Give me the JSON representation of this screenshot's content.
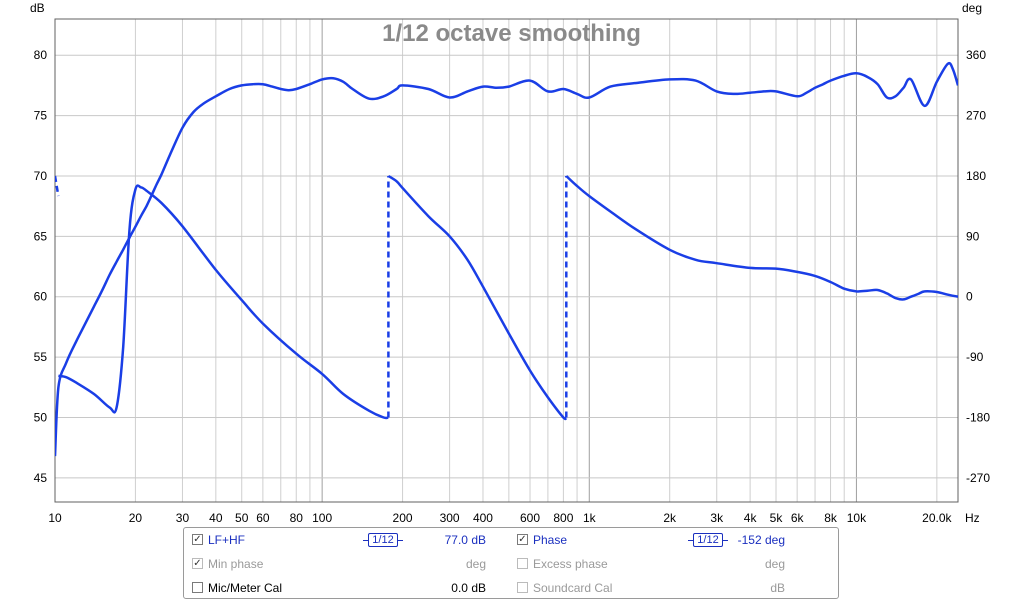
{
  "chart_data": {
    "type": "line",
    "title": "1/12 octave smoothing",
    "xlabel": "Hz",
    "ylabel_left": "dB",
    "ylabel_right": "deg",
    "x_scale": "log",
    "xlim": [
      10,
      24000
    ],
    "ylim_left": [
      43,
      83
    ],
    "ylim_right": [
      -306,
      414
    ],
    "grid": true,
    "x_ticks": [
      {
        "v": 10,
        "label": "10"
      },
      {
        "v": 20,
        "label": "20"
      },
      {
        "v": 30,
        "label": "30"
      },
      {
        "v": 40,
        "label": "40"
      },
      {
        "v": 50,
        "label": "50"
      },
      {
        "v": 60,
        "label": "60"
      },
      {
        "v": 80,
        "label": "80"
      },
      {
        "v": 100,
        "label": "100"
      },
      {
        "v": 200,
        "label": "200"
      },
      {
        "v": 300,
        "label": "300"
      },
      {
        "v": 400,
        "label": "400"
      },
      {
        "v": 600,
        "label": "600"
      },
      {
        "v": 800,
        "label": "800"
      },
      {
        "v": 1000,
        "label": "1k"
      },
      {
        "v": 2000,
        "label": "2k"
      },
      {
        "v": 3000,
        "label": "3k"
      },
      {
        "v": 4000,
        "label": "4k"
      },
      {
        "v": 5000,
        "label": "5k"
      },
      {
        "v": 6000,
        "label": "6k"
      },
      {
        "v": 8000,
        "label": "8k"
      },
      {
        "v": 10000,
        "label": "10k"
      },
      {
        "v": 20000,
        "label": "20.0k"
      }
    ],
    "y_left_ticks": [
      {
        "v": 45,
        "label": "45"
      },
      {
        "v": 50,
        "label": "50"
      },
      {
        "v": 55,
        "label": "55"
      },
      {
        "v": 60,
        "label": "60"
      },
      {
        "v": 65,
        "label": "65"
      },
      {
        "v": 70,
        "label": "70"
      },
      {
        "v": 75,
        "label": "75"
      },
      {
        "v": 80,
        "label": "80"
      }
    ],
    "y_right_ticks": [
      {
        "v": -270,
        "label": "-270"
      },
      {
        "v": -180,
        "label": "-180"
      },
      {
        "v": -90,
        "label": "-90"
      },
      {
        "v": 0,
        "label": "0"
      },
      {
        "v": 90,
        "label": "90"
      },
      {
        "v": 180,
        "label": "180"
      },
      {
        "v": 270,
        "label": "270"
      },
      {
        "v": 360,
        "label": "360"
      }
    ],
    "series": [
      {
        "name": "LF+HF",
        "axis": "left",
        "color": "#1a3ee6",
        "x": [
          10,
          10.3,
          11,
          12,
          13,
          14,
          15,
          16,
          17,
          18,
          19,
          20,
          21,
          22,
          23,
          24,
          25,
          27,
          30,
          33,
          36,
          40,
          45,
          50,
          55,
          60,
          65,
          70,
          75,
          80,
          90,
          100,
          110,
          120,
          130,
          150,
          170,
          190,
          200,
          250,
          300,
          350,
          400,
          450,
          500,
          600,
          700,
          800,
          900,
          1000,
          1200,
          1500,
          2000,
          2500,
          3000,
          3500,
          4000,
          4500,
          5000,
          6000,
          6500,
          7000,
          7500,
          8000,
          9000,
          10000,
          11000,
          12000,
          13000,
          14000,
          15000,
          16000,
          18000,
          20000,
          22000,
          23000,
          24000
        ],
        "y": [
          46.8,
          52.5,
          54.5,
          56.3,
          57.8,
          59.2,
          60.5,
          61.8,
          62.9,
          63.9,
          64.9,
          65.8,
          66.7,
          67.5,
          68.4,
          69.3,
          70.1,
          71.8,
          74.0,
          75.3,
          76.0,
          76.6,
          77.2,
          77.5,
          77.6,
          77.6,
          77.4,
          77.2,
          77.1,
          77.2,
          77.6,
          78.0,
          78.1,
          77.8,
          77.2,
          76.4,
          76.6,
          77.2,
          77.5,
          77.2,
          76.5,
          77.0,
          77.4,
          77.3,
          77.4,
          77.9,
          77.0,
          77.2,
          76.8,
          76.5,
          77.4,
          77.7,
          78.0,
          77.9,
          77.0,
          76.8,
          76.9,
          77.0,
          77.0,
          76.6,
          76.9,
          77.3,
          77.6,
          77.9,
          78.3,
          78.5,
          78.2,
          77.6,
          76.5,
          76.6,
          77.3,
          78.0,
          75.8,
          77.8,
          79.3,
          78.8,
          77.5
        ]
      },
      {
        "name": "Phase",
        "axis": "right",
        "color": "#1a3ee6",
        "segments": [
          {
            "x": [
              10,
              10.3
            ],
            "y": [
              180,
              150
            ],
            "dashed": true
          },
          {
            "x": [
              10.3,
              11,
              12,
              14,
              16,
              17,
              18,
              19,
              20,
              21,
              22,
              25,
              30,
              40,
              50,
              60,
              80,
              100,
              120,
              150,
              170,
              177
            ],
            "y": [
              -118,
              -120,
              -128,
              -145,
              -165,
              -165,
              -75,
              100,
              160,
              163,
              158,
              140,
              105,
              40,
              -5,
              -40,
              -85,
              -115,
              -145,
              -170,
              -180,
              -180
            ],
            "dashed": false
          },
          {
            "x": [
              177,
              177
            ],
            "y": [
              -180,
              180
            ],
            "dashed": true
          },
          {
            "x": [
              177,
              190,
              200,
              250,
              300,
              350,
              400,
              500,
              600,
              700,
              800,
              820
            ],
            "y": [
              180,
              172,
              162,
              120,
              90,
              55,
              15,
              -55,
              -110,
              -150,
              -180,
              -180
            ],
            "dashed": false
          },
          {
            "x": [
              820,
              820
            ],
            "y": [
              -180,
              180
            ],
            "dashed": true
          },
          {
            "x": [
              820,
              900,
              1000,
              1200,
              1500,
              2000,
              2500,
              3000,
              4000,
              5000,
              6000,
              7000,
              8000,
              9000,
              10000,
              11000,
              12000,
              13000,
              14000,
              15000,
              16000,
              17000,
              18000,
              20000,
              22000,
              24000
            ],
            "y": [
              180,
              165,
              150,
              127,
              100,
              70,
              55,
              50,
              43,
              42,
              37,
              31,
              22,
              12,
              8,
              9,
              10,
              5,
              -2,
              -4,
              0,
              4,
              8,
              7,
              3,
              0
            ],
            "dashed": false
          }
        ]
      }
    ],
    "annotations": []
  },
  "legend": {
    "rows": [
      {
        "label": "LF+HF",
        "checked": true,
        "enabled": true,
        "smoothing": "1/12",
        "value": "77.0 dB"
      },
      {
        "label": "Min phase",
        "checked": true,
        "enabled": false,
        "value": "deg"
      },
      {
        "label": "Mic/Meter Cal",
        "checked": false,
        "enabled": true,
        "value": "0.0 dB"
      }
    ],
    "rows_right": [
      {
        "label": "Phase",
        "checked": true,
        "enabled": true,
        "smoothing": "1/12",
        "value": "-152 deg"
      },
      {
        "label": "Excess phase",
        "checked": false,
        "enabled": false,
        "value": "deg"
      },
      {
        "label": "Soundcard Cal",
        "checked": false,
        "enabled": false,
        "value": "dB"
      }
    ]
  }
}
